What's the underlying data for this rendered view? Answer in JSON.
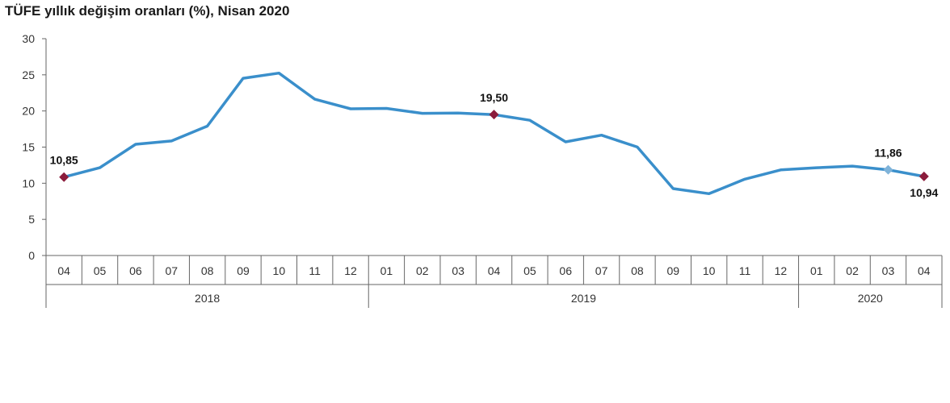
{
  "chart_data": {
    "type": "line",
    "title": "TÜFE yıllık değişim oranları (%), Nisan 2020",
    "xlabel": "",
    "ylabel": "",
    "ylim": [
      0,
      30
    ],
    "yticks": [
      "0",
      "5",
      "10",
      "15",
      "20",
      "25",
      "30"
    ],
    "grid": false,
    "legend": "none",
    "categories": [
      "04",
      "05",
      "06",
      "07",
      "08",
      "09",
      "10",
      "11",
      "12",
      "01",
      "02",
      "03",
      "04",
      "05",
      "06",
      "07",
      "08",
      "09",
      "10",
      "11",
      "12",
      "01",
      "02",
      "03",
      "04"
    ],
    "groups": [
      {
        "label": "2018",
        "count": 9
      },
      {
        "label": "2019",
        "count": 12
      },
      {
        "label": "2020",
        "count": 4
      }
    ],
    "series": [
      {
        "values": [
          10.85,
          12.15,
          15.39,
          15.85,
          17.9,
          24.52,
          25.24,
          21.62,
          20.3,
          20.35,
          19.67,
          19.71,
          19.5,
          18.71,
          15.72,
          16.65,
          15.01,
          9.26,
          8.55,
          10.56,
          11.84,
          12.15,
          12.37,
          11.86,
          10.94
        ],
        "color": "#3a8fcb"
      }
    ],
    "annotations": [
      {
        "index": 0,
        "label": "10,85",
        "marker_color": "#8b1c3c"
      },
      {
        "index": 12,
        "label": "19,50",
        "marker_color": "#8b1c3c"
      },
      {
        "index": 23,
        "label": "11,86",
        "marker_color": "#7fb3d9"
      },
      {
        "index": 24,
        "label": "10,94",
        "marker_color": "#8b1c3c"
      }
    ],
    "axis_color": "#666666"
  }
}
